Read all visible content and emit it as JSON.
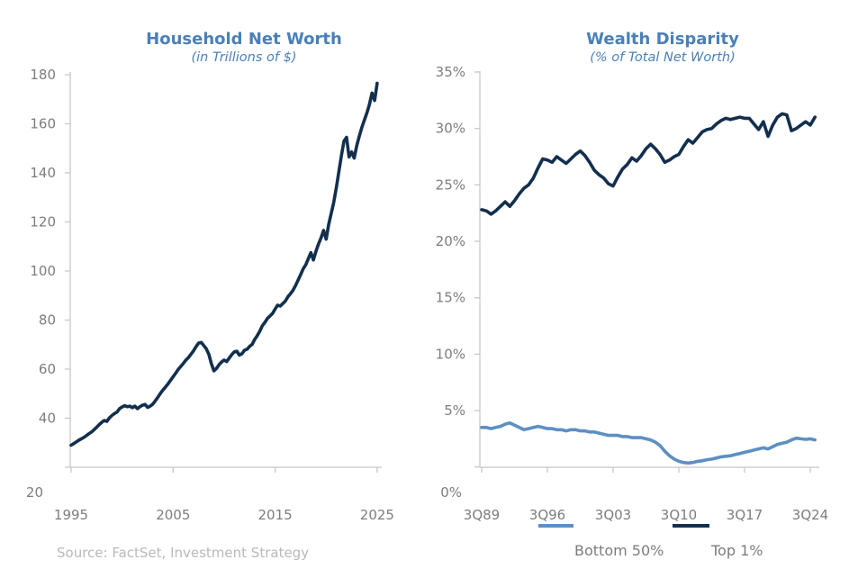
{
  "source_note": "Source: FactSet, Investment Strategy",
  "colors": {
    "title_blue": "#4a80b8",
    "axis_text": "#7d7d7d",
    "axis_line": "#c8c8c8",
    "source_text": "#b9b9b9",
    "navy": "#132f4e",
    "steel_blue": "#5d8fc3"
  },
  "chart_data": [
    {
      "type": "line",
      "title": "Household Net Worth",
      "subtitle": "(in Trillions of $)",
      "x_start": 1995,
      "x_step": 0.25,
      "x_range": [
        1995,
        2025
      ],
      "ylim": [
        20,
        180
      ],
      "grid": false,
      "x_tick_years": [
        1995,
        2005,
        2015,
        2025
      ],
      "x_tick_labels": [
        "1995",
        "2005",
        "2015",
        "2025"
      ],
      "y_tick_values": [
        180,
        160,
        140,
        120,
        100,
        80,
        60,
        40,
        20
      ],
      "y_tick_labels": [
        "180",
        "160",
        "140",
        "120",
        "100",
        "80",
        "60",
        "40",
        "20"
      ],
      "series": [
        {
          "name": "Household Net Worth",
          "color": "#132f4e",
          "values": [
            29.0,
            29.6,
            30.3,
            31.0,
            31.6,
            32.2,
            32.9,
            33.7,
            34.4,
            35.3,
            36.3,
            37.4,
            38.3,
            39.1,
            38.7,
            40.1,
            41.1,
            41.9,
            42.5,
            43.9,
            44.6,
            45.1,
            44.7,
            44.9,
            44.3,
            44.9,
            43.9,
            44.7,
            45.3,
            45.6,
            44.4,
            44.9,
            45.7,
            47.1,
            48.5,
            50.1,
            51.5,
            52.7,
            54.0,
            55.5,
            56.9,
            58.3,
            59.9,
            61.1,
            62.3,
            63.7,
            64.7,
            66.1,
            67.5,
            69.2,
            70.6,
            70.9,
            69.6,
            68.3,
            66.0,
            62.2,
            59.3,
            60.3,
            61.8,
            62.9,
            63.7,
            63.1,
            64.5,
            65.9,
            67.1,
            67.3,
            65.7,
            66.3,
            67.7,
            68.1,
            69.3,
            70.1,
            72.1,
            73.7,
            75.5,
            77.7,
            79.1,
            80.7,
            81.7,
            82.7,
            84.5,
            86.1,
            85.7,
            86.7,
            87.7,
            89.5,
            90.7,
            92.1,
            94.1,
            96.3,
            98.5,
            100.9,
            102.5,
            105.0,
            107.5,
            104.5,
            108.0,
            111.0,
            113.5,
            116.5,
            113.0,
            119.0,
            123.5,
            128.0,
            134.0,
            140.5,
            147.0,
            153.0,
            154.5,
            146.5,
            148.5,
            146.0,
            151.0,
            155.0,
            158.5,
            161.5,
            164.5,
            168.0,
            172.5,
            169.5,
            176.5
          ]
        }
      ],
      "legend": null
    },
    {
      "type": "line",
      "title": "Wealth Disparity",
      "subtitle": "(% of Total Net Worth)",
      "x_start": 1989.5,
      "x_step": 0.5,
      "x_range": [
        1989.5,
        2025
      ],
      "ylim": [
        0,
        35
      ],
      "grid": false,
      "x_tick_years": [
        1989.5,
        1996.5,
        2003.5,
        2010.5,
        2017.5,
        2024.5
      ],
      "x_tick_labels": [
        "3Q89",
        "3Q96",
        "3Q03",
        "3Q10",
        "3Q17",
        "3Q24"
      ],
      "y_tick_values": [
        35,
        30,
        25,
        20,
        15,
        10,
        5,
        0
      ],
      "y_tick_labels": [
        "35%",
        "30%",
        "25%",
        "20%",
        "15%",
        "10%",
        "5%",
        "0%"
      ],
      "series": [
        {
          "name": "Bottom 50%",
          "color": "#5d8fc3",
          "values": [
            3.5,
            3.5,
            3.4,
            3.5,
            3.6,
            3.8,
            3.9,
            3.7,
            3.5,
            3.3,
            3.4,
            3.5,
            3.6,
            3.5,
            3.4,
            3.4,
            3.3,
            3.3,
            3.2,
            3.3,
            3.3,
            3.2,
            3.2,
            3.1,
            3.1,
            3.0,
            2.9,
            2.8,
            2.8,
            2.8,
            2.7,
            2.7,
            2.6,
            2.6,
            2.6,
            2.5,
            2.4,
            2.2,
            1.9,
            1.4,
            1.0,
            0.7,
            0.5,
            0.4,
            0.35,
            0.4,
            0.5,
            0.55,
            0.65,
            0.7,
            0.8,
            0.9,
            0.95,
            1.0,
            1.1,
            1.2,
            1.3,
            1.4,
            1.5,
            1.6,
            1.7,
            1.6,
            1.8,
            2.0,
            2.1,
            2.2,
            2.4,
            2.55,
            2.5,
            2.45,
            2.5,
            2.4
          ]
        },
        {
          "name": "Top 1%",
          "color": "#132f4e",
          "values": [
            22.8,
            22.7,
            22.4,
            22.7,
            23.1,
            23.5,
            23.1,
            23.6,
            24.2,
            24.7,
            25.0,
            25.6,
            26.5,
            27.3,
            27.2,
            27.0,
            27.5,
            27.2,
            26.9,
            27.3,
            27.7,
            28.0,
            27.6,
            27.0,
            26.3,
            25.9,
            25.6,
            25.1,
            24.9,
            25.7,
            26.4,
            26.8,
            27.4,
            27.1,
            27.6,
            28.2,
            28.6,
            28.2,
            27.7,
            27.0,
            27.2,
            27.5,
            27.7,
            28.4,
            29.0,
            28.7,
            29.2,
            29.7,
            29.9,
            30.0,
            30.4,
            30.7,
            30.9,
            30.8,
            30.9,
            31.0,
            30.9,
            30.9,
            30.4,
            29.9,
            30.6,
            29.3,
            30.3,
            31.0,
            31.3,
            31.2,
            29.8,
            30.0,
            30.3,
            30.6,
            30.3,
            31.0
          ]
        }
      ],
      "legend": [
        {
          "label": "Bottom 50%",
          "color": "#5d8fc3"
        },
        {
          "label": "Top 1%",
          "color": "#132f4e"
        }
      ]
    }
  ]
}
